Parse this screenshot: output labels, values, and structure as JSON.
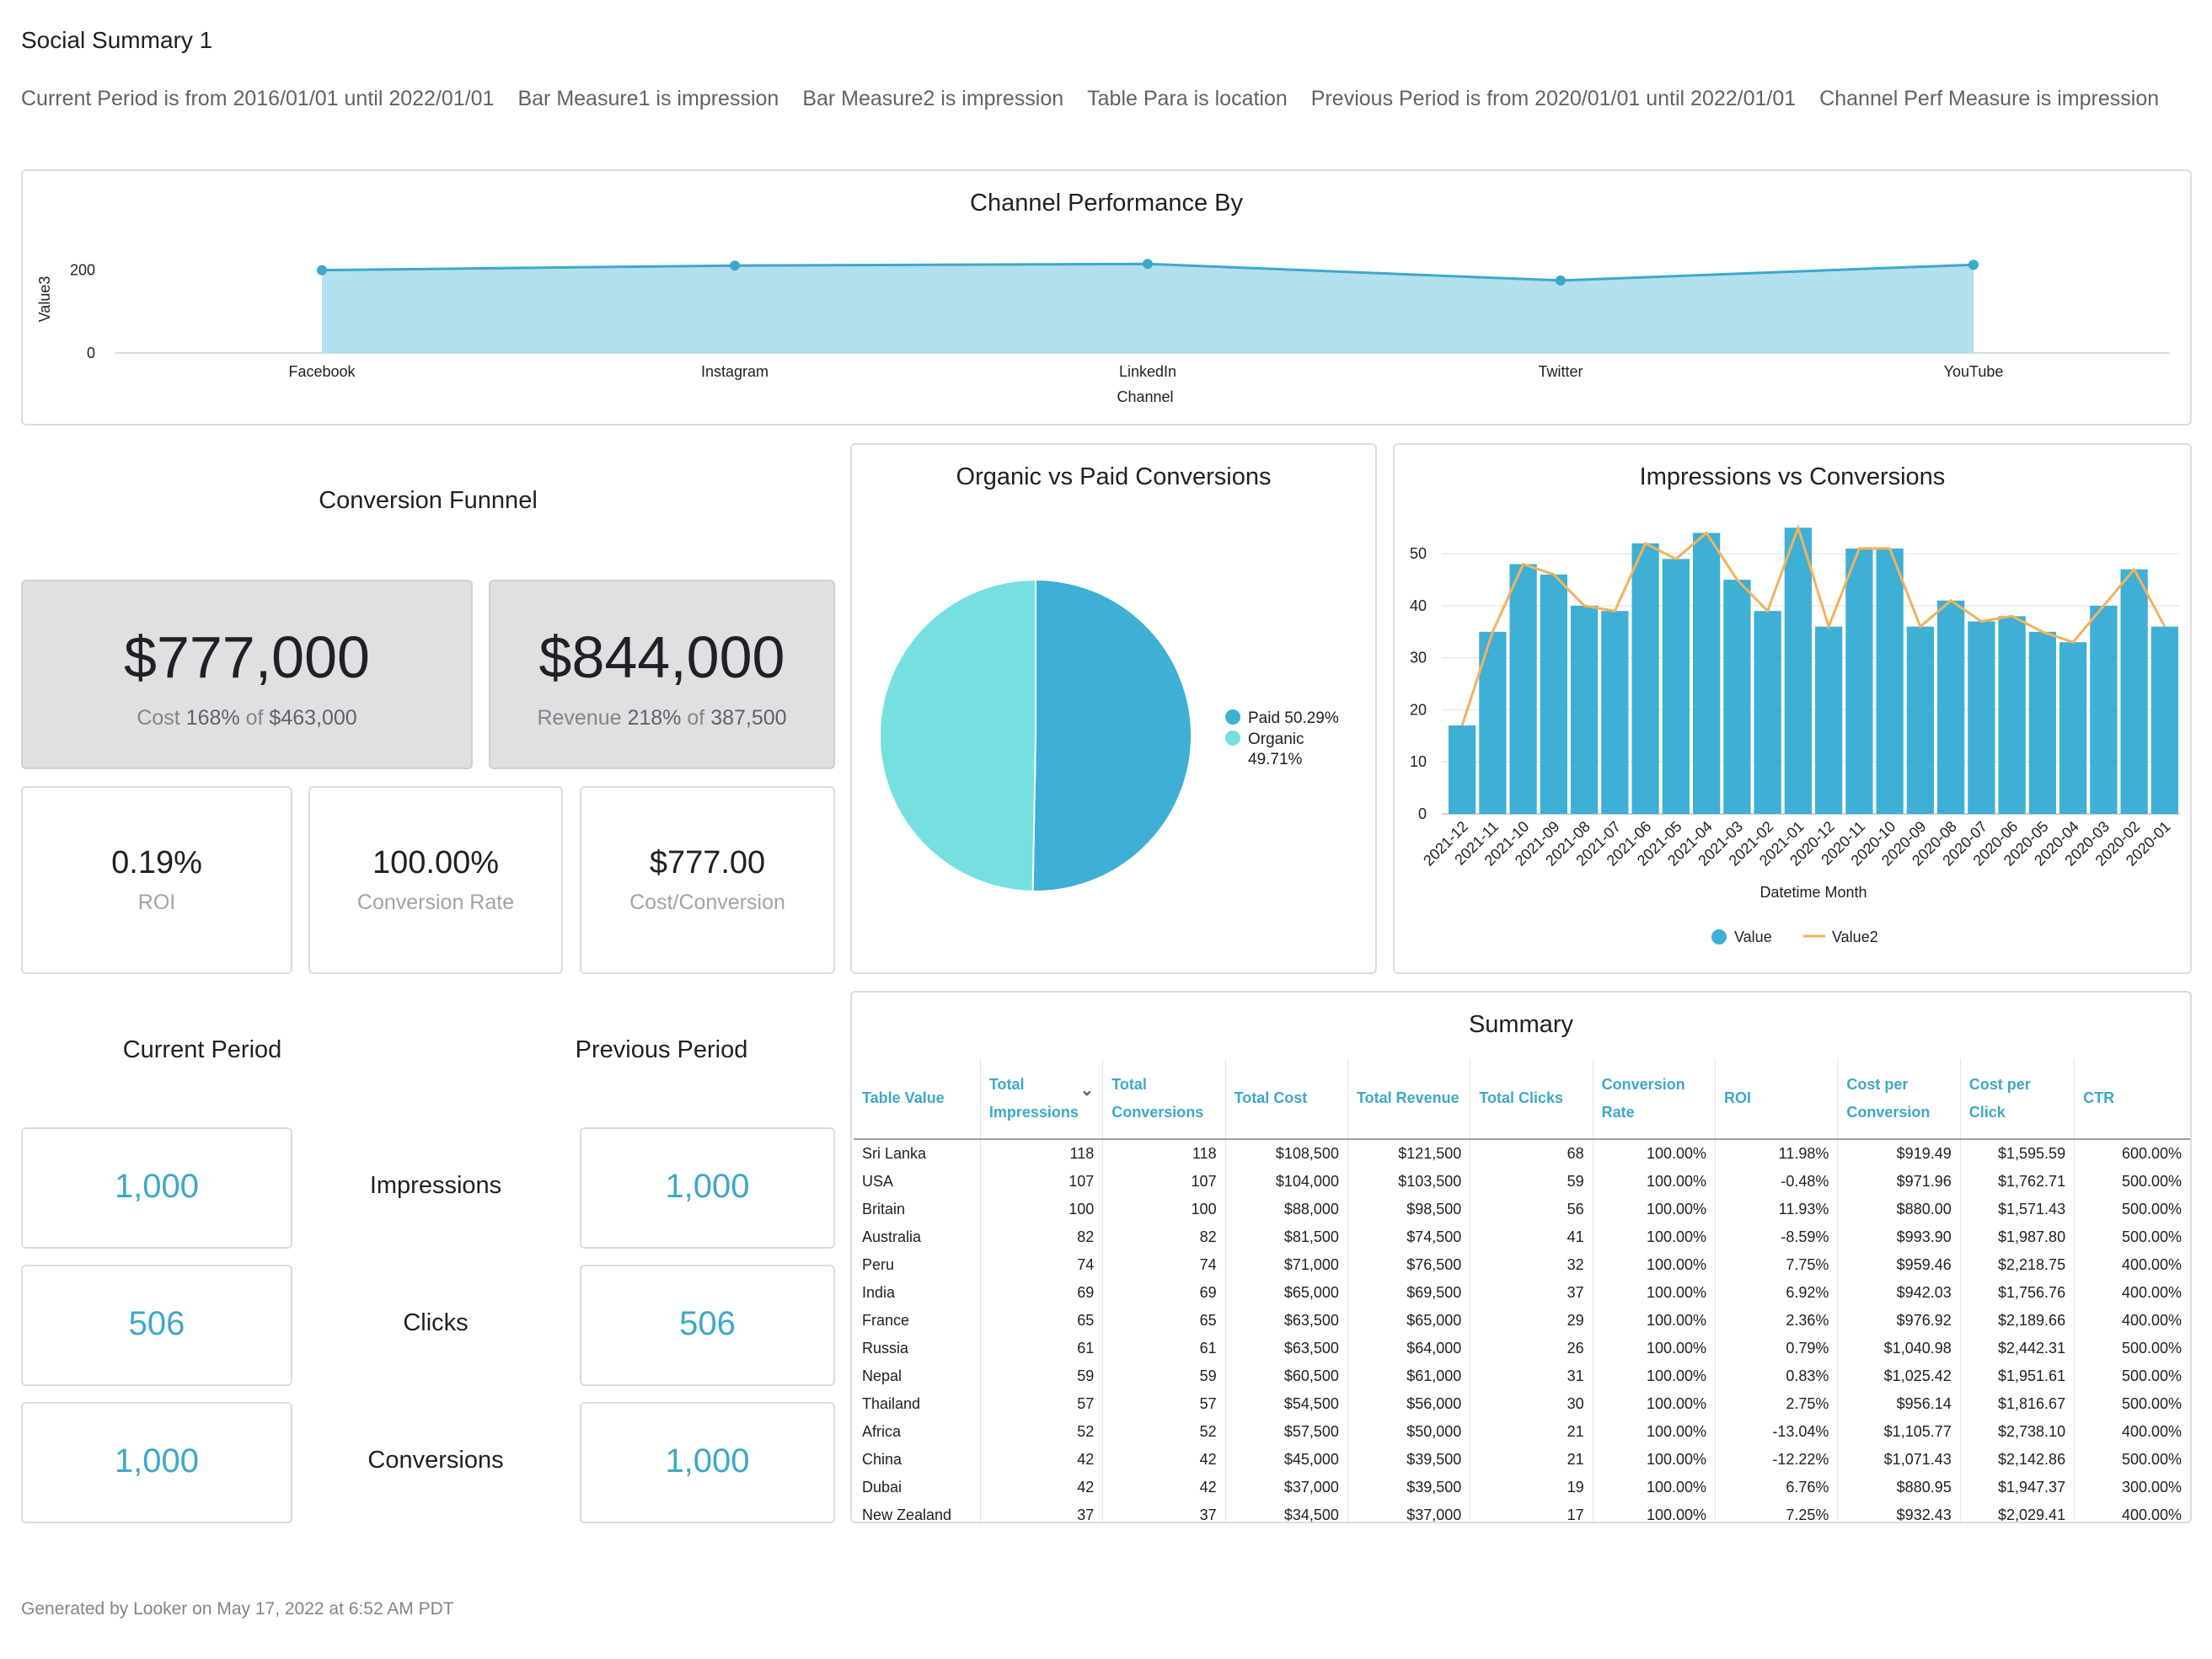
{
  "page": {
    "title": "Social Summary 1",
    "filters": [
      "Current Period is from 2016/01/01 until 2022/01/01",
      "Bar Measure1 is impression",
      "Bar Measure2 is impression",
      "Table Para is location",
      "Previous Period is from 2020/01/01 until 2022/01/01",
      "Channel Perf Measure is impression"
    ],
    "footer": "Generated by Looker on May 17, 2022 at 6:52 AM PDT"
  },
  "colors": {
    "accent": "#3ea8c9",
    "light_blue": "#b3dfee",
    "teal": "#76e0e1",
    "orange": "#f2b25c",
    "tile_gray": "#dfe0e2"
  },
  "funnel": {
    "title": "Conversion Funnnel",
    "cost": {
      "value": "$777,000",
      "label": "Cost",
      "pct": "168%",
      "of": "of",
      "target": "$463,000"
    },
    "revenue": {
      "value": "$844,000",
      "label": "Revenue",
      "pct": "218%",
      "of": "of",
      "target": "387,500"
    },
    "kpis": [
      {
        "value": "0.19%",
        "label": "ROI"
      },
      {
        "value": "100.00%",
        "label": "Conversion Rate"
      },
      {
        "value": "$777.00",
        "label": "Cost/Conversion"
      }
    ]
  },
  "periods": {
    "current_title": "Current Period",
    "previous_title": "Previous Period",
    "rows": [
      {
        "label": "Impressions",
        "current": "1,000",
        "previous": "1,000"
      },
      {
        "label": "Clicks",
        "current": "506",
        "previous": "506"
      },
      {
        "label": "Conversions",
        "current": "1,000",
        "previous": "1,000"
      }
    ]
  },
  "chart_data": [
    {
      "type": "area",
      "title": "Channel Performance By",
      "xlabel": "Channel",
      "ylabel": "Value3",
      "categories": [
        "Facebook",
        "Instagram",
        "LinkedIn",
        "Twitter",
        "YouTube"
      ],
      "values": [
        200,
        211,
        215,
        175,
        213
      ],
      "yticks": [
        "0",
        "200"
      ],
      "ylim": [
        0,
        250
      ],
      "grid": false
    },
    {
      "type": "pie",
      "title": "Organic vs Paid Conversions",
      "slices": [
        {
          "label": "Paid 50.29%",
          "value": 50.29,
          "color": "#3eafd5"
        },
        {
          "label": "Organic 49.71%",
          "label_line1": "Organic",
          "label_line2": "49.71%",
          "value": 49.71,
          "color": "#76e0e1"
        }
      ],
      "legend": "right"
    },
    {
      "type": "bar",
      "title": "Impressions vs Conversions",
      "xlabel": "Datetime Month",
      "categories": [
        "2021-12",
        "2021-11",
        "2021-10",
        "2021-09",
        "2021-08",
        "2021-07",
        "2021-06",
        "2021-05",
        "2021-04",
        "2021-03",
        "2021-02",
        "2021-01",
        "2020-12",
        "2020-11",
        "2020-10",
        "2020-09",
        "2020-08",
        "2020-07",
        "2020-06",
        "2020-05",
        "2020-04",
        "2020-03",
        "2020-02",
        "2020-01"
      ],
      "series": [
        {
          "name": "Value",
          "type": "bar",
          "color": "#3eafd5",
          "values": [
            17,
            35,
            48,
            46,
            40,
            39,
            52,
            49,
            54,
            45,
            39,
            55,
            36,
            51,
            51,
            36,
            41,
            37,
            38,
            35,
            33,
            40,
            47,
            36
          ]
        },
        {
          "name": "Value2",
          "type": "line",
          "color": "#f2b25c",
          "values": [
            17,
            35,
            48,
            46,
            40,
            39,
            52,
            49,
            54,
            45,
            39,
            55,
            36,
            51,
            51,
            36,
            41,
            37,
            38,
            35,
            33,
            40,
            47,
            36
          ]
        }
      ],
      "yticks": [
        "0",
        "10",
        "20",
        "30",
        "40",
        "50"
      ],
      "ylim": [
        0,
        57
      ],
      "grid": true,
      "legend": "bottom"
    },
    {
      "type": "table",
      "title": "Summary",
      "columns": [
        [
          "Table Value"
        ],
        [
          "Total",
          "Impressions"
        ],
        [
          "Total",
          "Conversions"
        ],
        [
          "Total Cost"
        ],
        [
          "Total Revenue"
        ],
        [
          "Total Clicks"
        ],
        [
          "Conversion",
          "Rate"
        ],
        [
          "ROI"
        ],
        [
          "Cost per",
          "Conversion"
        ],
        [
          "Cost per Click"
        ],
        [
          "CTR"
        ]
      ],
      "sort_indicator": "⌄",
      "rows": [
        [
          "Sri Lanka",
          "118",
          "118",
          "$108,500",
          "$121,500",
          "68",
          "100.00%",
          "11.98%",
          "$919.49",
          "$1,595.59",
          "600.00%"
        ],
        [
          "USA",
          "107",
          "107",
          "$104,000",
          "$103,500",
          "59",
          "100.00%",
          "-0.48%",
          "$971.96",
          "$1,762.71",
          "500.00%"
        ],
        [
          "Britain",
          "100",
          "100",
          "$88,000",
          "$98,500",
          "56",
          "100.00%",
          "11.93%",
          "$880.00",
          "$1,571.43",
          "500.00%"
        ],
        [
          "Australia",
          "82",
          "82",
          "$81,500",
          "$74,500",
          "41",
          "100.00%",
          "-8.59%",
          "$993.90",
          "$1,987.80",
          "500.00%"
        ],
        [
          "Peru",
          "74",
          "74",
          "$71,000",
          "$76,500",
          "32",
          "100.00%",
          "7.75%",
          "$959.46",
          "$2,218.75",
          "400.00%"
        ],
        [
          "India",
          "69",
          "69",
          "$65,000",
          "$69,500",
          "37",
          "100.00%",
          "6.92%",
          "$942.03",
          "$1,756.76",
          "400.00%"
        ],
        [
          "France",
          "65",
          "65",
          "$63,500",
          "$65,000",
          "29",
          "100.00%",
          "2.36%",
          "$976.92",
          "$2,189.66",
          "400.00%"
        ],
        [
          "Russia",
          "61",
          "61",
          "$63,500",
          "$64,000",
          "26",
          "100.00%",
          "0.79%",
          "$1,040.98",
          "$2,442.31",
          "500.00%"
        ],
        [
          "Nepal",
          "59",
          "59",
          "$60,500",
          "$61,000",
          "31",
          "100.00%",
          "0.83%",
          "$1,025.42",
          "$1,951.61",
          "500.00%"
        ],
        [
          "Thailand",
          "57",
          "57",
          "$54,500",
          "$56,000",
          "30",
          "100.00%",
          "2.75%",
          "$956.14",
          "$1,816.67",
          "500.00%"
        ],
        [
          "Africa",
          "52",
          "52",
          "$57,500",
          "$50,000",
          "21",
          "100.00%",
          "-13.04%",
          "$1,105.77",
          "$2,738.10",
          "400.00%"
        ],
        [
          "China",
          "42",
          "42",
          "$45,000",
          "$39,500",
          "21",
          "100.00%",
          "-12.22%",
          "$1,071.43",
          "$2,142.86",
          "500.00%"
        ],
        [
          "Dubai",
          "42",
          "42",
          "$37,000",
          "$39,500",
          "19",
          "100.00%",
          "6.76%",
          "$880.95",
          "$1,947.37",
          "300.00%"
        ],
        [
          "New Zealand",
          "37",
          "37",
          "$34,500",
          "$37,000",
          "17",
          "100.00%",
          "7.25%",
          "$932.43",
          "$2,029.41",
          "400.00%"
        ]
      ]
    }
  ]
}
